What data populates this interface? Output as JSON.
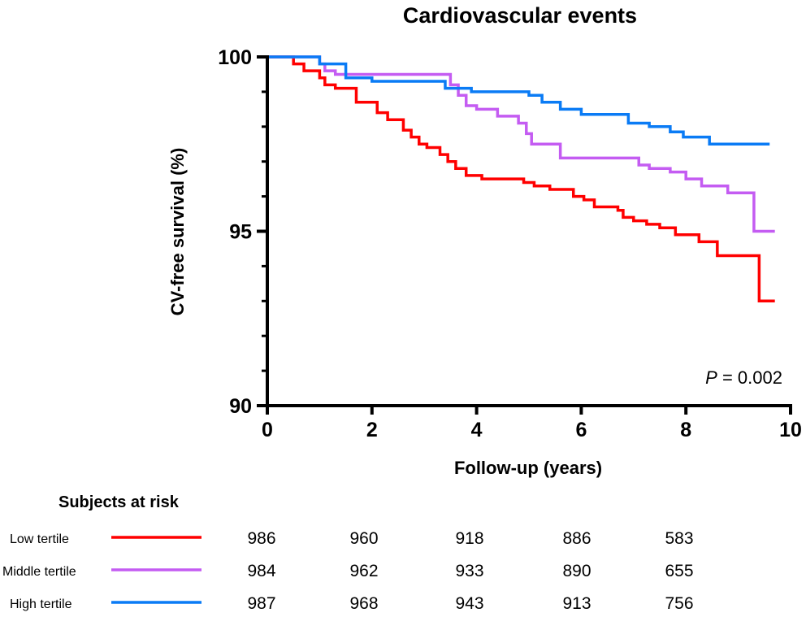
{
  "chart_data": {
    "type": "line",
    "subtype": "kaplan-meier-step",
    "title": "Cardiovascular events",
    "xlabel": "Follow-up (years)",
    "ylabel": "CV-free survival (%)",
    "xlim": [
      0,
      10
    ],
    "ylim": [
      90,
      100
    ],
    "xticks": [
      "0",
      "2",
      "4",
      "6",
      "8",
      "10"
    ],
    "yticks": [
      "90",
      "95",
      "100"
    ],
    "grid": false,
    "annotation": {
      "label": "P",
      "text": " = 0.002"
    },
    "series": [
      {
        "name": "Low tertile",
        "color": "#ff0000",
        "x": [
          0,
          0.5,
          0.7,
          1.0,
          1.1,
          1.3,
          1.7,
          2.1,
          2.3,
          2.6,
          2.75,
          2.9,
          3.05,
          3.3,
          3.45,
          3.6,
          3.8,
          4.1,
          4.9,
          5.1,
          5.4,
          5.85,
          6.05,
          6.25,
          6.7,
          6.8,
          7.0,
          7.25,
          7.5,
          7.8,
          8.25,
          8.6,
          9.4,
          9.7
        ],
        "y": [
          100,
          99.8,
          99.6,
          99.4,
          99.2,
          99.1,
          98.7,
          98.4,
          98.2,
          97.9,
          97.7,
          97.5,
          97.4,
          97.2,
          97.0,
          96.8,
          96.6,
          96.5,
          96.4,
          96.3,
          96.2,
          96.0,
          95.9,
          95.7,
          95.6,
          95.4,
          95.3,
          95.2,
          95.1,
          94.9,
          94.7,
          94.3,
          93.0,
          93.0
        ]
      },
      {
        "name": "Middle tertile",
        "color": "#c45cf2",
        "x": [
          0,
          1.0,
          1.1,
          1.3,
          1.45,
          3.5,
          3.65,
          3.8,
          4.0,
          4.4,
          4.8,
          4.95,
          5.05,
          5.6,
          7.1,
          7.3,
          7.7,
          8.0,
          8.3,
          8.8,
          9.3,
          9.7
        ],
        "y": [
          100,
          99.8,
          99.6,
          99.5,
          99.5,
          99.2,
          98.9,
          98.6,
          98.5,
          98.3,
          98.1,
          97.8,
          97.5,
          97.1,
          96.9,
          96.8,
          96.7,
          96.5,
          96.3,
          96.1,
          95.0,
          95.0
        ]
      },
      {
        "name": "High tertile",
        "color": "#0a7bf5",
        "x": [
          0,
          1.0,
          1.5,
          2.0,
          3.4,
          3.9,
          5.0,
          5.25,
          5.6,
          6.0,
          6.9,
          7.3,
          7.7,
          7.95,
          8.45,
          9.6
        ],
        "y": [
          100,
          99.8,
          99.4,
          99.3,
          99.1,
          99.0,
          98.9,
          98.7,
          98.5,
          98.35,
          98.1,
          98.0,
          97.85,
          97.7,
          97.5,
          97.5
        ]
      }
    ],
    "risk_table": {
      "title": "Subjects at risk",
      "timepoints": [
        0,
        2,
        4,
        6,
        8
      ],
      "rows": [
        {
          "label": "Low tertile",
          "values": [
            "986",
            "960",
            "918",
            "886",
            "583"
          ]
        },
        {
          "label": "Middle tertile",
          "values": [
            "984",
            "962",
            "933",
            "890",
            "655"
          ]
        },
        {
          "label": "High tertile",
          "values": [
            "987",
            "968",
            "943",
            "913",
            "756"
          ]
        }
      ]
    }
  }
}
